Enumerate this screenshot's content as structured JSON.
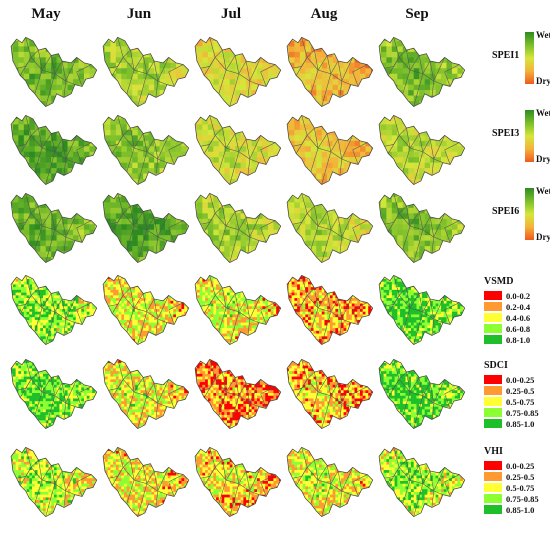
{
  "months": [
    "May",
    "Jun",
    "Jul",
    "Aug",
    "Sep"
  ],
  "rows": [
    {
      "index": "SPEI1",
      "legend_type": "gradient",
      "wet_label": "Wet",
      "dry_label": "Dry",
      "levels": [
        0.7,
        0.55,
        0.38,
        0.22,
        0.66
      ]
    },
    {
      "index": "SPEI3",
      "legend_type": "gradient",
      "wet_label": "Wet",
      "dry_label": "Dry",
      "levels": [
        0.78,
        0.62,
        0.45,
        0.28,
        0.48
      ]
    },
    {
      "index": "SPEI6",
      "legend_type": "gradient",
      "wet_label": "Wet",
      "dry_label": "Dry",
      "levels": [
        0.72,
        0.8,
        0.55,
        0.5,
        0.66
      ]
    },
    {
      "index": "VSMD",
      "legend_type": "classes",
      "classes": [
        "0.0-0.2",
        "0.2-0.4",
        "0.4-0.6",
        "0.6-0.8",
        "0.8-1.0"
      ],
      "levels": [
        0.62,
        0.42,
        0.45,
        0.3,
        0.72
      ]
    },
    {
      "index": "SDCI",
      "legend_type": "classes",
      "classes": [
        "0.0-0.25",
        "0.25-0.5",
        "0.5-0.75",
        "0.75-0.85",
        "0.85-1.0"
      ],
      "levels": [
        0.7,
        0.45,
        0.22,
        0.32,
        0.72
      ]
    },
    {
      "index": "VHI",
      "legend_type": "classes",
      "classes": [
        "0.0-0.25",
        "0.25-0.5",
        "0.5-0.75",
        "0.75-0.85",
        "0.85-1.0"
      ],
      "levels": [
        0.55,
        0.42,
        0.35,
        0.45,
        0.58
      ]
    }
  ],
  "colors": {
    "wet": "#1e7d1e",
    "dry": "#ff3300",
    "classes": [
      "#ff0000",
      "#ff9a33",
      "#ffff33",
      "#8cff33",
      "#1fbf2a"
    ],
    "gradient": [
      "#2e8b22",
      "#7bbf2a",
      "#d6e63a",
      "#f4b23a",
      "#f05a1e"
    ]
  }
}
